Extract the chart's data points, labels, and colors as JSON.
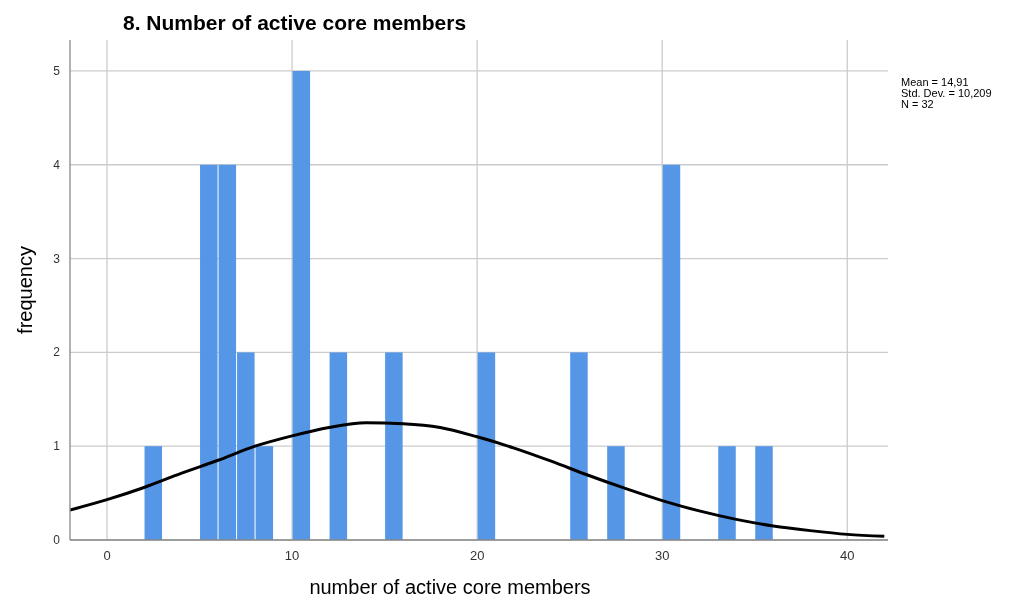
{
  "chart_data": {
    "type": "histogram",
    "title": "8. Number of active core members",
    "xlabel": "number of active core members",
    "ylabel": "frequency",
    "annotations": [
      "Mean = 14,91",
      "Std. Dev. = 10,209",
      "N = 32"
    ],
    "bins": [
      2,
      3,
      4,
      5,
      6,
      7,
      8,
      9,
      10,
      11,
      12,
      13,
      14,
      15,
      16,
      17,
      18,
      19,
      20,
      21,
      22,
      23,
      24,
      25,
      26,
      27,
      28,
      29,
      30,
      31,
      32,
      33,
      34,
      35,
      36
    ],
    "series": [
      {
        "color": "#5596e6",
        "values": [
          1,
          0,
          0,
          4,
          4,
          2,
          1,
          0,
          5,
          0,
          2,
          0,
          0,
          2,
          0,
          0,
          0,
          0,
          2,
          0,
          0,
          0,
          0,
          2,
          0,
          1,
          0,
          0,
          4,
          0,
          0,
          1,
          0,
          1
        ]
      },
      {
        "type": "line",
        "color": "#000000",
        "x": [
          -2,
          0,
          2,
          4,
          6,
          8,
          10,
          12,
          14,
          16,
          18,
          20,
          22,
          24,
          26,
          28,
          30,
          32,
          34,
          36,
          38,
          40,
          42
        ],
        "values": [
          0.32,
          0.43,
          0.56,
          0.71,
          0.85,
          1.0,
          1.11,
          1.2,
          1.25,
          1.24,
          1.2,
          1.1,
          0.98,
          0.84,
          0.69,
          0.55,
          0.42,
          0.31,
          0.22,
          0.15,
          0.1,
          0.06,
          0.04
        ]
      }
    ],
    "xlim": [
      -2,
      42.2
    ],
    "ylim": [
      0,
      5.33
    ],
    "xticks": [
      0,
      10,
      20,
      30,
      40
    ],
    "yticks": [
      0,
      1,
      2,
      3,
      4,
      5
    ],
    "grid": true
  }
}
